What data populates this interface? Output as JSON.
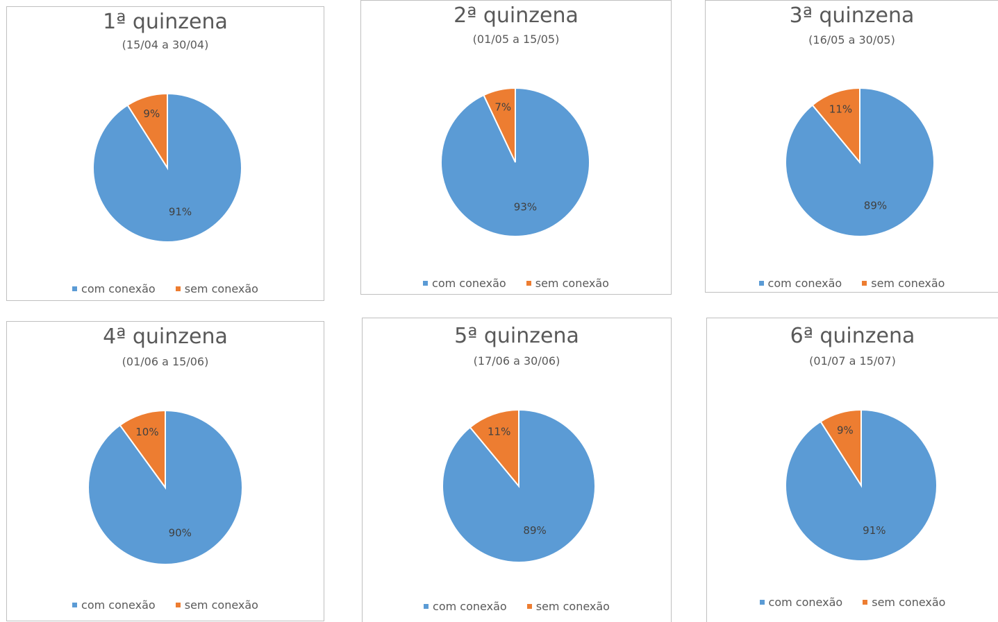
{
  "colors": {
    "com": "#5b9bd5",
    "sem": "#ed7d31"
  },
  "chart_data": [
    {
      "type": "pie",
      "title": "1ª quinzena",
      "subtitle": "(15/04 a 30/04)",
      "categories": [
        "com conexão",
        "sem conexão"
      ],
      "values": [
        91,
        9
      ],
      "labels": [
        "91%",
        "9%"
      ],
      "legend_position": "bottom"
    },
    {
      "type": "pie",
      "title": "2ª quinzena",
      "subtitle": "(01/05 a 15/05)",
      "categories": [
        "com conexão",
        "sem conexão"
      ],
      "values": [
        93,
        7
      ],
      "labels": [
        "93%",
        "7%"
      ],
      "legend_position": "bottom"
    },
    {
      "type": "pie",
      "title": "3ª quinzena",
      "subtitle": "(16/05 a 30/05)",
      "categories": [
        "com conexão",
        "sem conexão"
      ],
      "values": [
        89,
        11
      ],
      "labels": [
        "89%",
        "11%"
      ],
      "legend_position": "bottom"
    },
    {
      "type": "pie",
      "title": "4ª quinzena",
      "subtitle": "(01/06 a 15/06)",
      "categories": [
        "com conexão",
        "sem conexão"
      ],
      "values": [
        90,
        10
      ],
      "labels": [
        "90%",
        "10%"
      ],
      "legend_position": "bottom"
    },
    {
      "type": "pie",
      "title": "5ª quinzena",
      "subtitle": "(17/06 a 30/06)",
      "categories": [
        "com conexão",
        "sem conexão"
      ],
      "values": [
        89,
        11
      ],
      "labels": [
        "89%",
        "11%"
      ],
      "legend_position": "bottom"
    },
    {
      "type": "pie",
      "title": "6ª quinzena",
      "subtitle": "(01/07 a 15/07)",
      "categories": [
        "com conexão",
        "sem conexão"
      ],
      "values": [
        91,
        9
      ],
      "labels": [
        "91%",
        "9%"
      ],
      "legend_position": "bottom"
    }
  ]
}
